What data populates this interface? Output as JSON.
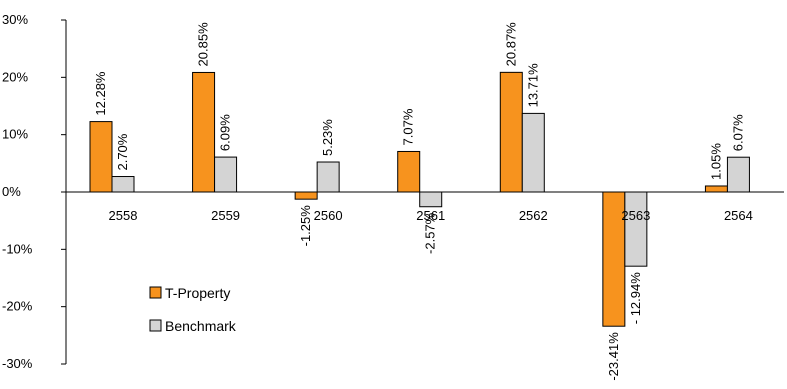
{
  "chart_data": {
    "type": "bar",
    "categories": [
      "2558",
      "2559",
      "2560",
      "2561",
      "2562",
      "2563",
      "2564"
    ],
    "series": [
      {
        "name": "T-Property",
        "color": "#f7931e",
        "values": [
          12.28,
          20.85,
          -1.25,
          7.07,
          20.87,
          -23.41,
          1.05
        ],
        "labels": [
          "12.28%",
          "20.85%",
          "-1.25%",
          "7.07%",
          "20.87%",
          "-23.41%",
          "1.05%"
        ]
      },
      {
        "name": "Benchmark",
        "color": "#d4d4d4",
        "values": [
          2.7,
          6.09,
          5.23,
          -2.57,
          13.71,
          -12.94,
          6.07
        ],
        "labels": [
          "2.70%",
          "6.09%",
          "5.23%",
          "-2.57%",
          "13.71%",
          "- 12.94%",
          "6.07%"
        ]
      }
    ],
    "yticks": [
      30,
      20,
      10,
      0,
      -10,
      -20,
      -30
    ],
    "ytick_labels": [
      "30%",
      "20%",
      "10%",
      "0%",
      "-10%",
      "-20%",
      "-30%"
    ],
    "ylim": [
      -30,
      30
    ],
    "grid": false,
    "legend_position": "lower-left"
  }
}
